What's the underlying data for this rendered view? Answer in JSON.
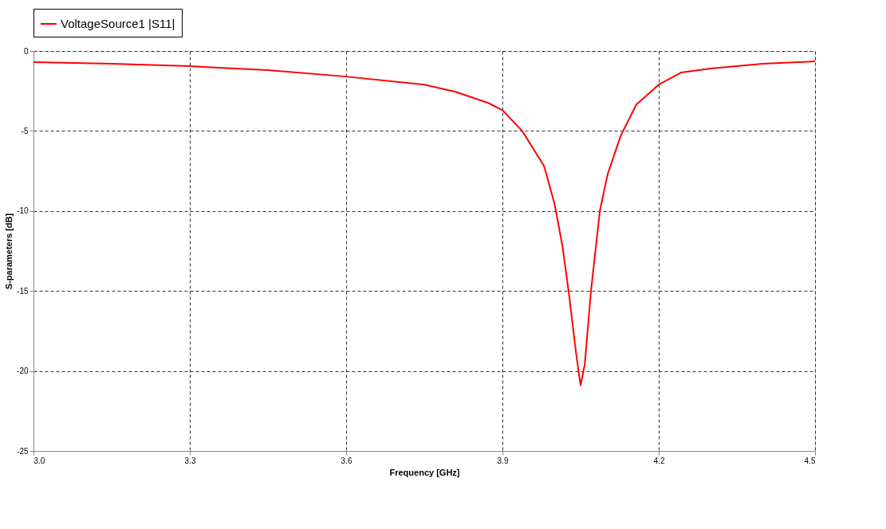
{
  "chart_data": {
    "type": "line",
    "xlabel": "Frequency [GHz]",
    "ylabel": "S-parameters [dB]",
    "x": [
      3.0,
      3.15,
      3.3,
      3.45,
      3.6,
      3.75,
      3.81,
      3.873,
      3.9,
      3.938,
      3.98,
      4.0,
      4.015,
      4.027,
      4.041,
      4.05,
      4.058,
      4.07,
      4.087,
      4.102,
      4.127,
      4.157,
      4.2,
      4.243,
      4.3,
      4.4,
      4.5
    ],
    "series": [
      {
        "name": "VoltageSource1 |S11|",
        "color": "#ff0000",
        "values": [
          -0.7,
          -0.8,
          -0.95,
          -1.2,
          -1.6,
          -2.1,
          -2.55,
          -3.25,
          -3.7,
          -5.0,
          -7.2,
          -9.55,
          -12.15,
          -15.0,
          -18.8,
          -20.9,
          -19.6,
          -15.0,
          -10.0,
          -7.7,
          -5.3,
          -3.35,
          -2.1,
          -1.35,
          -1.1,
          -0.8,
          -0.65
        ]
      }
    ],
    "xlim": [
      3.0,
      4.5
    ],
    "xticks": [
      {
        "value": 3.0,
        "label": "3.0"
      },
      3.3,
      3.6,
      3.9,
      4.2,
      4.5
    ],
    "ylim": [
      -25,
      0
    ],
    "yticks": [
      -25,
      -20,
      -15,
      -10,
      -5,
      0
    ],
    "grid": true,
    "legend": "top",
    "line_style": "solid"
  }
}
